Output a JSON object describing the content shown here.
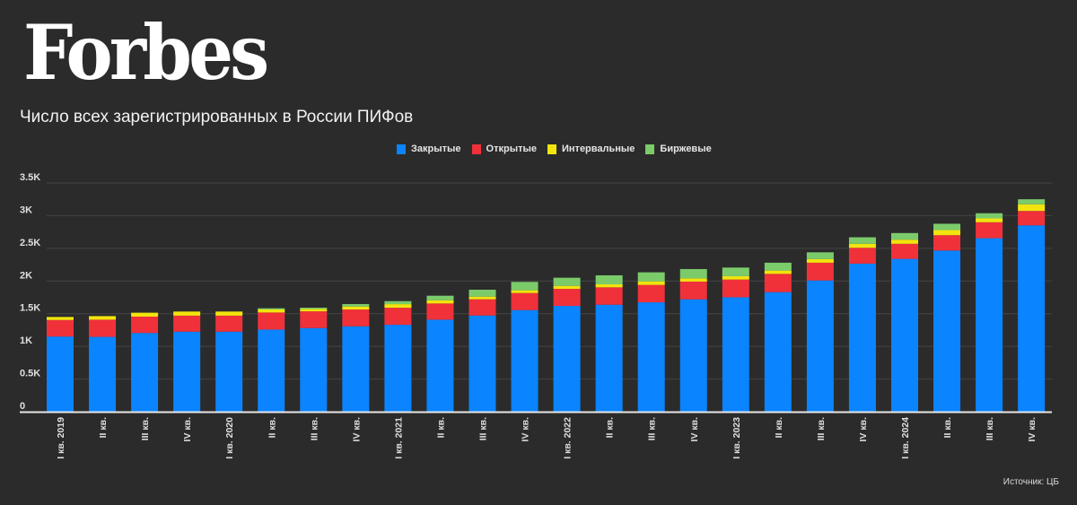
{
  "brand": "Forbes",
  "source": "Источник: ЦБ",
  "colors": {
    "background": "#2b2b2b",
    "closed": "#0a84ff",
    "open": "#f0313a",
    "interval": "#f2e40e",
    "exchange": "#7ccb6b",
    "grid": "#444444",
    "axis": "#e6e6e6"
  },
  "chart_data": {
    "type": "bar",
    "stacked": true,
    "title": "Число всех зарегистрированных в России ПИФов",
    "xlabel": "",
    "ylabel": "",
    "ylim": [
      0,
      3500
    ],
    "yticks": [
      0,
      500,
      1000,
      1500,
      2000,
      2500,
      3000,
      3500
    ],
    "ytick_labels": [
      "0",
      "0.5K",
      "1K",
      "1.5K",
      "2K",
      "2.5K",
      "3K",
      "3.5K"
    ],
    "grid": true,
    "legend_position": "top-center",
    "categories": [
      "I кв. 2019",
      "II кв.",
      "III кв.",
      "IV кв.",
      "I кв. 2020",
      "II кв.",
      "III кв.",
      "IV кв.",
      "I кв. 2021",
      "II кв.",
      "III кв.",
      "IV кв.",
      "I кв. 2022",
      "II кв.",
      "III кв.",
      "IV кв.",
      "I кв. 2023",
      "II кв.",
      "III кв.",
      "IV кв.",
      "I кв. 2024",
      "II кв.",
      "III кв.",
      "IV кв."
    ],
    "series": [
      {
        "name": "Закрытые",
        "color_key": "closed",
        "values": [
          1150,
          1145,
          1205,
          1225,
          1225,
          1257,
          1280,
          1307,
          1330,
          1408,
          1472,
          1555,
          1619,
          1637,
          1674,
          1720,
          1751,
          1830,
          2009,
          2266,
          2339,
          2467,
          2655,
          2852
        ]
      },
      {
        "name": "Открытые",
        "color_key": "open",
        "values": [
          253,
          263,
          250,
          245,
          245,
          261,
          256,
          257,
          261,
          248,
          248,
          261,
          261,
          266,
          266,
          271,
          271,
          279,
          271,
          242,
          230,
          234,
          244,
          220
        ]
      },
      {
        "name": "Интервальные",
        "color_key": "interval",
        "values": [
          47,
          55,
          60,
          63,
          63,
          47,
          38,
          46,
          55,
          50,
          41,
          42,
          46,
          46,
          55,
          50,
          51,
          51,
          55,
          61,
          64,
          78,
          59,
          102
        ]
      },
      {
        "name": "Биржевые",
        "color_key": "exchange",
        "values": [
          0,
          0,
          0,
          0,
          0,
          18,
          18,
          37,
          46,
          69,
          106,
          128,
          124,
          138,
          138,
          142,
          133,
          120,
          104,
          100,
          101,
          97,
          79,
          77
        ]
      }
    ]
  }
}
